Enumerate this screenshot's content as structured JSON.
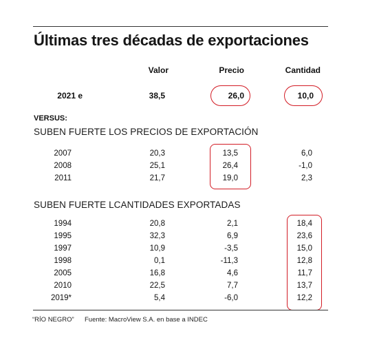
{
  "title": "Últimas tres décadas de exportaciones",
  "columns": [
    "Valor",
    "Precio",
    "Cantidad"
  ],
  "highlight": {
    "year": "2021 e",
    "valor": "38,5",
    "precio": "26,0",
    "cantidad": "10,0"
  },
  "versus_label": "VERSUS:",
  "sections": [
    {
      "title": "SUBEN FUERTE LOS PRECIOS DE EXPORTACIÓN",
      "rows": [
        {
          "year": "2007",
          "valor": "20,3",
          "precio": "13,5",
          "cantidad": "6,0"
        },
        {
          "year": "2008",
          "valor": "25,1",
          "precio": "26,4",
          "cantidad": "-1,0"
        },
        {
          "year": "2011",
          "valor": "21,7",
          "precio": "19,0",
          "cantidad": "2,3"
        }
      ]
    },
    {
      "title": "SUBEN FUERTE LCANTIDADES EXPORTADAS",
      "rows": [
        {
          "year": "1994",
          "valor": "20,8",
          "precio": "2,1",
          "cantidad": "18,4"
        },
        {
          "year": "1995",
          "valor": "32,3",
          "precio": "6,9",
          "cantidad": "23,6"
        },
        {
          "year": "1997",
          "valor": "10,9",
          "precio": "-3,5",
          "cantidad": "15,0"
        },
        {
          "year": "1998",
          "valor": "0,1",
          "precio": "-11,3",
          "cantidad": "12,8"
        },
        {
          "year": "2005",
          "valor": "16,8",
          "precio": "4,6",
          "cantidad": "11,7"
        },
        {
          "year": "2010",
          "valor": "22,5",
          "precio": "7,7",
          "cantidad": "13,7"
        },
        {
          "year": "2019*",
          "valor": "5,4",
          "precio": "-6,0",
          "cantidad": "12,2"
        }
      ]
    }
  ],
  "footer": {
    "source": "“RÍO NEGRO”",
    "credit": "Fuente: MacroView S.A. en base a INDEC"
  },
  "colors": {
    "highlight_circle": "#d21b24"
  }
}
